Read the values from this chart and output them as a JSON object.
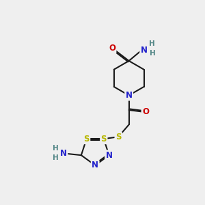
{
  "bg": "#efefef",
  "bc": "#1a1a1a",
  "bw": 1.5,
  "dbo": 0.055,
  "colors": {
    "N": "#2222cc",
    "O": "#cc0000",
    "S": "#b8b800",
    "H": "#558888"
  },
  "fs": 8.5,
  "fsH": 7.5
}
